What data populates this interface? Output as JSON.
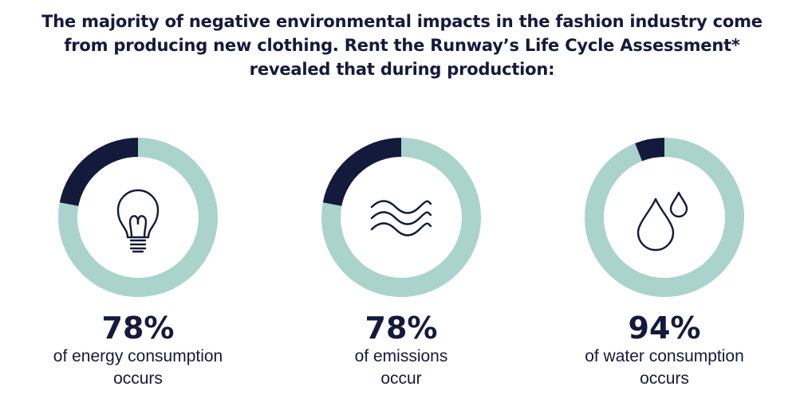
{
  "headline": {
    "line1": "The majority of negative environmental impacts in the fashion industry come",
    "line2": "from producing new clothing. Rent the Runway’s Life Cycle Assessment*",
    "line3": "revealed that during production:"
  },
  "colors": {
    "primary_slice": "#141a3c",
    "remainder_ring": "#a9d3cb",
    "text": "#141a3c",
    "background": "#ffffff"
  },
  "chart_data": [
    {
      "type": "pie",
      "style": "donut",
      "categories": [
        "",
        ""
      ],
      "values": [
        78,
        22
      ],
      "unit": "%",
      "value_label": "78%",
      "caption_line1": "of energy consumption",
      "caption_line2": "occurs",
      "icon": "lightbulb-icon"
    },
    {
      "type": "pie",
      "style": "donut",
      "categories": [
        "",
        ""
      ],
      "values": [
        78,
        22
      ],
      "unit": "%",
      "value_label": "78%",
      "caption_line1": "of emissions",
      "caption_line2": "occur",
      "icon": "emissions-waves-icon"
    },
    {
      "type": "pie",
      "style": "donut",
      "categories": [
        "",
        ""
      ],
      "values": [
        94,
        6
      ],
      "unit": "%",
      "value_label": "94%",
      "caption_line1": "of water consumption",
      "caption_line2": "occurs",
      "icon": "water-drops-icon"
    }
  ]
}
